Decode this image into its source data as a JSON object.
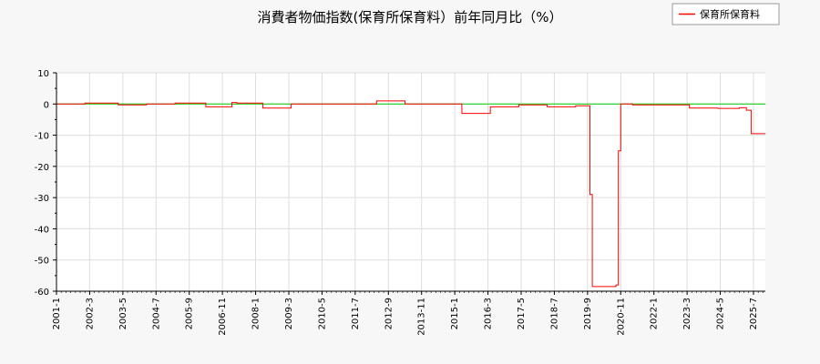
{
  "chart_data": {
    "type": "line",
    "title": "消費者物価指数(保育所保育料）前年同月比（%）",
    "xlabel": "",
    "ylabel": "",
    "ylim": [
      -60,
      10
    ],
    "yticks": [
      10,
      0,
      -10,
      -20,
      -30,
      -40,
      -50,
      -60
    ],
    "xlim": [
      "2001-01",
      "2025-12"
    ],
    "xticks": [
      "2001-1",
      "2002-3",
      "2003-5",
      "2004-7",
      "2005-9",
      "2006-11",
      "2008-1",
      "2009-3",
      "2010-5",
      "2011-7",
      "2012-9",
      "2013-11",
      "2015-1",
      "2016-3",
      "2017-5",
      "2018-7",
      "2019-9",
      "2020-11",
      "2022-1",
      "2023-3",
      "2024-5",
      "2025-7"
    ],
    "grid": true,
    "legend_position": "top-right",
    "reference_line": {
      "y": 0,
      "color": "#00cc00"
    },
    "series": [
      {
        "name": "保育所保育料",
        "color": "#ff0000",
        "step_points": [
          [
            "2001-01",
            0.0
          ],
          [
            "2002-01",
            0.3
          ],
          [
            "2003-03",
            -0.3
          ],
          [
            "2004-03",
            0.0
          ],
          [
            "2005-03",
            0.3
          ],
          [
            "2006-04",
            -0.9
          ],
          [
            "2007-03",
            0.5
          ],
          [
            "2007-05",
            0.3
          ],
          [
            "2008-04",
            -1.3
          ],
          [
            "2009-04",
            0.0
          ],
          [
            "2012-04",
            1.0
          ],
          [
            "2013-04",
            0.0
          ],
          [
            "2015-04",
            -3.0
          ],
          [
            "2016-04",
            -0.9
          ],
          [
            "2017-04",
            -0.3
          ],
          [
            "2018-04",
            -0.9
          ],
          [
            "2019-04",
            -0.6
          ],
          [
            "2019-10",
            -29.0
          ],
          [
            "2019-11",
            -58.5
          ],
          [
            "2020-09",
            -58.0
          ],
          [
            "2020-10",
            -15.0
          ],
          [
            "2020-11",
            0.0
          ],
          [
            "2021-04",
            -0.3
          ],
          [
            "2023-04",
            -1.3
          ],
          [
            "2024-04",
            -1.4
          ],
          [
            "2025-01",
            -1.2
          ],
          [
            "2025-04",
            -2.0
          ],
          [
            "2025-06",
            -9.5
          ],
          [
            "2025-12",
            -9.5
          ]
        ]
      }
    ]
  }
}
